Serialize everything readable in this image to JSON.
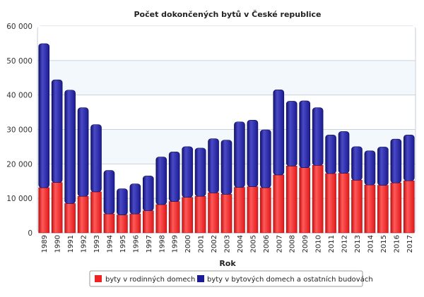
{
  "chart_data": {
    "type": "bar",
    "stacked": true,
    "title": "Počet dokončených bytů v České republice",
    "xlabel": "Rok",
    "ylabel": "",
    "ylim": [
      0,
      60000
    ],
    "yticks": [
      0,
      10000,
      20000,
      30000,
      40000,
      50000,
      60000
    ],
    "ytick_labels": [
      "0",
      "10 000",
      "20 000",
      "30 000",
      "40 000",
      "50 000",
      "60 000"
    ],
    "grid": true,
    "legend": "bottom",
    "categories": [
      "1989",
      "1990",
      "1991",
      "1992",
      "1993",
      "1994",
      "1995",
      "1996",
      "1997",
      "1998",
      "1999",
      "2000",
      "2001",
      "2002",
      "2003",
      "2004",
      "2005",
      "2006",
      "2007",
      "2008",
      "2009",
      "2010",
      "2011",
      "2012",
      "2013",
      "2014",
      "2015",
      "2016",
      "2017"
    ],
    "series": [
      {
        "name": "byty v rodinných domech",
        "color": "#ee2222",
        "values": [
          13100,
          14600,
          8500,
          10600,
          11900,
          5500,
          5200,
          5500,
          6400,
          8200,
          9100,
          10300,
          10600,
          11600,
          11200,
          13200,
          13400,
          13100,
          16800,
          19400,
          18900,
          19600,
          17200,
          17300,
          15300,
          13900,
          13800,
          14500,
          15100
        ]
      },
      {
        "name": "byty v bytových domech a ostatních budovách",
        "color": "#1a1a9a",
        "values": [
          41800,
          29800,
          32900,
          25700,
          19500,
          12600,
          7600,
          8700,
          10100,
          13800,
          14400,
          14700,
          14000,
          15700,
          15700,
          19000,
          19300,
          16800,
          24700,
          18800,
          19400,
          16700,
          11200,
          12100,
          9700,
          9900,
          11100,
          12700,
          13300
        ]
      }
    ]
  }
}
